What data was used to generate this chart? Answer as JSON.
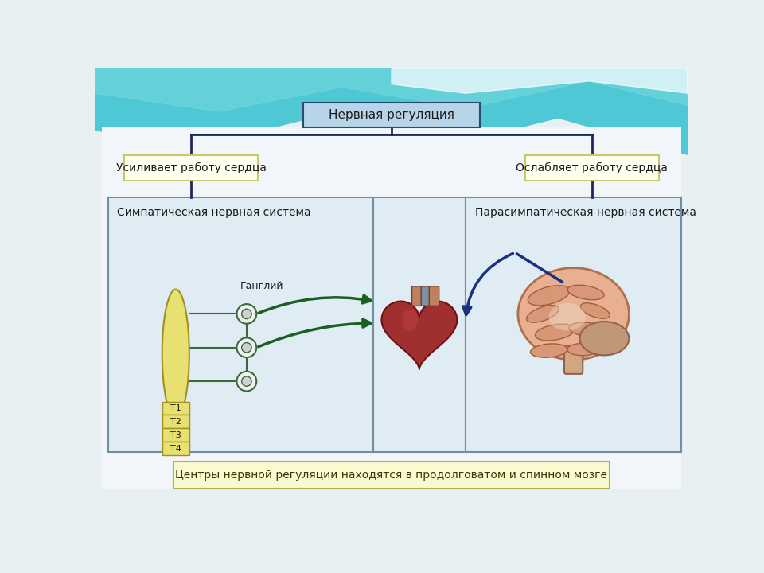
{
  "bg_color": "#e8f0f4",
  "teal_wave_color": "#4ec8d4",
  "teal_wave2_color": "#7ad8e0",
  "white_area_color": "#f0f4f8",
  "title_box_text": "Нервная регуляция",
  "title_box_color": "#b8d4e8",
  "title_box_border": "#2d4a6b",
  "left_label": "Усиливает работу сердца",
  "right_label": "Ослабляет работу сердца",
  "label_box_color": "#fffff0",
  "label_box_border": "#c8c870",
  "left_panel_title": "Симпатическая нервная система",
  "right_panel_title": "Парасимпатическая нервная система",
  "panel_bg_color": "#e0ecf4",
  "panel_border_color": "#7090a0",
  "gangliy_label": "Ганглий",
  "spinal_labels": [
    "T1",
    "T2",
    "T3",
    "T4"
  ],
  "spinal_color": "#e8e070",
  "spinal_border": "#a09020",
  "arrow_sympathetic_color": "#1a6020",
  "arrow_parasympathetic_color": "#1a3080",
  "bottom_box_text": "Центры нервной регуляции находятся в продолговатом и спинном мозге",
  "bottom_box_color": "#fafad0",
  "bottom_box_border": "#b0b050",
  "line_color": "#1a2a5a",
  "text_color": "#1a1a1a",
  "ganglion_fill": "#f0f0f0",
  "ganglion_border": "#3a6a3a"
}
